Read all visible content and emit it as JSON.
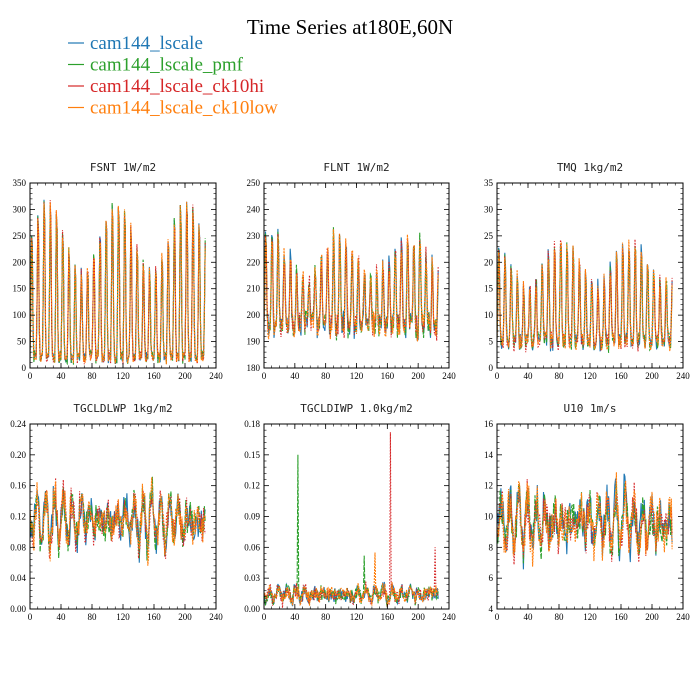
{
  "title": "Time Series at180E,60N",
  "colors": {
    "cam144_lscale": "#1f77b4",
    "cam144_lscale_pmf": "#2ca02c",
    "cam144_lscale_ck10hi": "#d62728",
    "cam144_lscale_ck10low": "#ff7f0e"
  },
  "legend": {
    "placement": "top-left",
    "entries": [
      {
        "name": "cam144_lscale",
        "color": "#1f77b4"
      },
      {
        "name": "cam144_lscale_pmf",
        "color": "#2ca02c"
      },
      {
        "name": "cam144_lscale_ck10hi",
        "color": "#d62728"
      },
      {
        "name": "cam144_lscale_ck10low",
        "color": "#ff7f0e"
      }
    ]
  },
  "chart_data": [
    {
      "type": "line",
      "title": "FSNT   1W/m2",
      "xlim": [
        0,
        240
      ],
      "ylim": [
        0,
        350
      ],
      "xticks": [
        "0",
        "40",
        "80",
        "120",
        "160",
        "200",
        "240"
      ],
      "yticks": [
        "0",
        "50",
        "100",
        "150",
        "200",
        "250",
        "300",
        "350"
      ],
      "ytick_values": [
        0,
        50,
        100,
        150,
        200,
        250,
        300,
        350
      ],
      "series_names": [
        "cam144_lscale",
        "cam144_lscale_pmf",
        "cam144_lscale_ck10hi",
        "cam144_lscale_ck10low"
      ],
      "pattern": "diurnal",
      "base": 160,
      "amp": 140,
      "noise": 10,
      "spikes": []
    },
    {
      "type": "line",
      "title": "FLNT   1W/m2",
      "xlim": [
        0,
        240
      ],
      "ylim": [
        180,
        250
      ],
      "xticks": [
        "0",
        "40",
        "80",
        "120",
        "160",
        "200",
        "240"
      ],
      "yticks": [
        "180",
        "190",
        "200",
        "210",
        "220",
        "230",
        "240",
        "250"
      ],
      "ytick_values": [
        180,
        190,
        200,
        210,
        220,
        230,
        240,
        250
      ],
      "series_names": [
        "cam144_lscale",
        "cam144_lscale_pmf",
        "cam144_lscale_ck10hi",
        "cam144_lscale_ck10low"
      ],
      "pattern": "diurnal",
      "base": 212,
      "amp": 16,
      "noise": 4,
      "spikes": []
    },
    {
      "type": "line",
      "title": "TMQ   1kg/m2",
      "xlim": [
        0,
        240
      ],
      "ylim": [
        0,
        35
      ],
      "xticks": [
        "0",
        "40",
        "80",
        "120",
        "160",
        "200",
        "240"
      ],
      "yticks": [
        "0",
        "5",
        "10",
        "15",
        "20",
        "25",
        "30",
        "35"
      ],
      "ytick_values": [
        0,
        5,
        10,
        15,
        20,
        25,
        30,
        35
      ],
      "series_names": [
        "cam144_lscale",
        "cam144_lscale_pmf",
        "cam144_lscale_ck10hi",
        "cam144_lscale_ck10low"
      ],
      "pattern": "diurnal",
      "base": 14,
      "amp": 9,
      "noise": 1.5,
      "spikes": []
    },
    {
      "type": "line",
      "title": "TGCLDLWP   1kg/m2",
      "xlim": [
        0,
        240
      ],
      "ylim": [
        0,
        0.24
      ],
      "xticks": [
        "0",
        "40",
        "80",
        "120",
        "160",
        "200",
        "240"
      ],
      "yticks": [
        "0.00",
        "0.04",
        "0.08",
        "0.12",
        "0.16",
        "0.20",
        "0.24"
      ],
      "ytick_values": [
        0,
        0.04,
        0.08,
        0.12,
        0.16,
        0.2,
        0.24
      ],
      "series_names": [
        "cam144_lscale",
        "cam144_lscale_pmf",
        "cam144_lscale_ck10hi",
        "cam144_lscale_ck10low"
      ],
      "pattern": "noisy",
      "base": 0.115,
      "amp": 0.035,
      "noise": 0.02,
      "spikes": []
    },
    {
      "type": "line",
      "title": "TGCLDIWP   1.0kg/m2",
      "xlim": [
        0,
        240
      ],
      "ylim": [
        0,
        0.18
      ],
      "xticks": [
        "0",
        "40",
        "80",
        "120",
        "160",
        "200",
        "240"
      ],
      "yticks": [
        "0.00",
        "0.03",
        "0.06",
        "0.09",
        "0.12",
        "0.15",
        "0.18"
      ],
      "ytick_values": [
        0,
        0.03,
        0.06,
        0.09,
        0.12,
        0.15,
        0.18
      ],
      "series_names": [
        "cam144_lscale",
        "cam144_lscale_pmf",
        "cam144_lscale_ck10hi",
        "cam144_lscale_ck10low"
      ],
      "pattern": "noisy",
      "base": 0.014,
      "amp": 0.006,
      "noise": 0.006,
      "spikes": [
        {
          "series": 1,
          "x": 44,
          "value": 0.15
        },
        {
          "series": 2,
          "x": 164,
          "value": 0.172
        },
        {
          "series": 2,
          "x": 222,
          "value": 0.06
        },
        {
          "series": 1,
          "x": 130,
          "value": 0.052
        },
        {
          "series": 3,
          "x": 144,
          "value": 0.055
        }
      ]
    },
    {
      "type": "line",
      "title": "U10   1m/s",
      "xlim": [
        0,
        240
      ],
      "ylim": [
        4,
        16
      ],
      "xticks": [
        "0",
        "40",
        "80",
        "120",
        "160",
        "200",
        "240"
      ],
      "yticks": [
        "4",
        "6",
        "8",
        "10",
        "12",
        "14",
        "16"
      ],
      "ytick_values": [
        4,
        6,
        8,
        10,
        12,
        14,
        16
      ],
      "series_names": [
        "cam144_lscale",
        "cam144_lscale_pmf",
        "cam144_lscale_ck10hi",
        "cam144_lscale_ck10low"
      ],
      "pattern": "noisy",
      "base": 9.6,
      "amp": 1.8,
      "noise": 1.2,
      "spikes": []
    }
  ]
}
